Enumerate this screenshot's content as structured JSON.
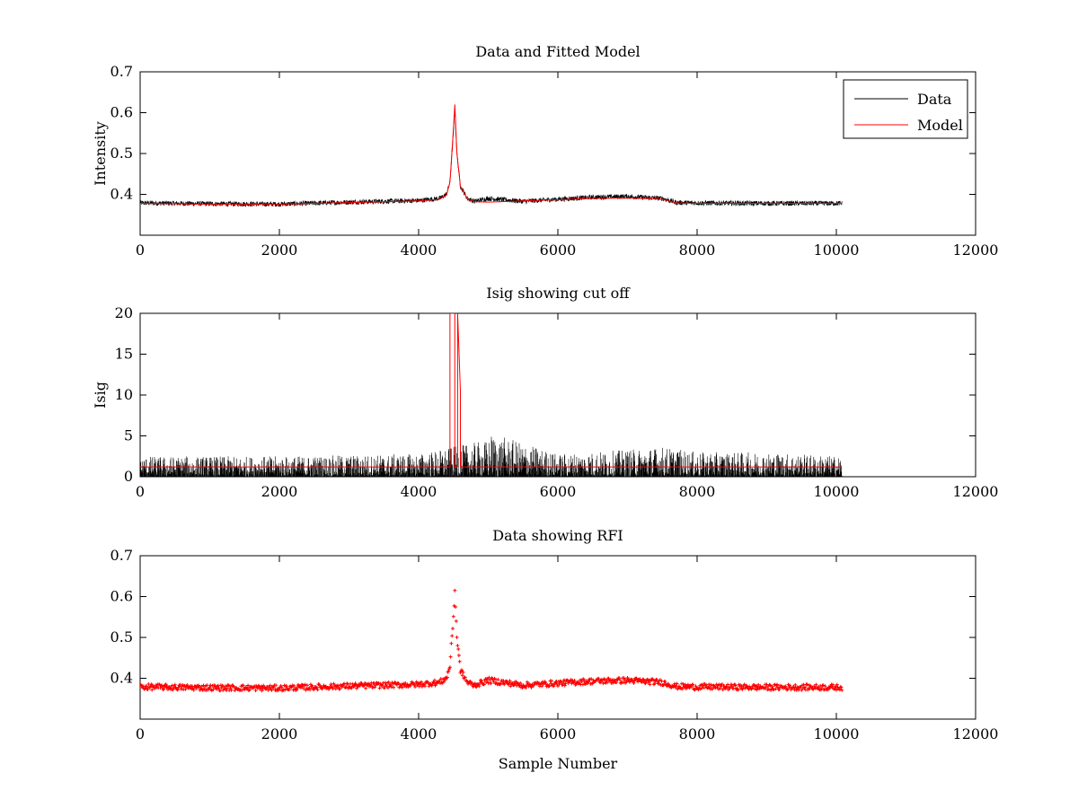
{
  "colors": {
    "data": "#000000",
    "model": "#ff0000",
    "rfi": "#ff0000",
    "cutoff": "#ff0000",
    "axes": "#000000",
    "background": "#ffffff"
  },
  "chart_data": [
    {
      "type": "line",
      "title": "Data and Fitted Model",
      "xlabel": "",
      "ylabel": "Intensity",
      "xlim": [
        0,
        12000
      ],
      "ylim": [
        0.3,
        0.7
      ],
      "xticks": [
        "0",
        "2000",
        "4000",
        "6000",
        "8000",
        "10000",
        "12000"
      ],
      "yticks": [
        "0.4",
        "0.5",
        "0.6",
        "0.7"
      ],
      "grid": false,
      "legend": {
        "placement": "top-right",
        "entries": [
          "Data",
          "Model"
        ]
      },
      "series": [
        {
          "name": "Data",
          "color": "#000000",
          "noise": 0.006,
          "x": [
            0,
            1000,
            2000,
            3000,
            4000,
            4300,
            4400,
            4450,
            4500,
            4520,
            4550,
            4600,
            4700,
            4800,
            5000,
            5500,
            6000,
            6500,
            7000,
            7500,
            7700,
            8000,
            9000,
            10080
          ],
          "y": [
            0.379,
            0.377,
            0.376,
            0.381,
            0.385,
            0.39,
            0.4,
            0.43,
            0.55,
            0.61,
            0.5,
            0.42,
            0.39,
            0.383,
            0.39,
            0.383,
            0.388,
            0.393,
            0.395,
            0.39,
            0.38,
            0.379,
            0.378,
            0.378
          ]
        },
        {
          "name": "Model",
          "color": "#ff0000",
          "noise": 0.0,
          "x": [
            0,
            1000,
            2000,
            3000,
            4000,
            4300,
            4400,
            4450,
            4500,
            4520,
            4550,
            4600,
            4700,
            4800,
            5000,
            5500,
            6000,
            6500,
            7000,
            7500,
            7700,
            8000,
            9000,
            10080
          ],
          "y": [
            0.378,
            0.376,
            0.376,
            0.38,
            0.384,
            0.388,
            0.398,
            0.43,
            0.56,
            0.62,
            0.5,
            0.42,
            0.389,
            0.382,
            0.381,
            0.384,
            0.387,
            0.39,
            0.391,
            0.388,
            0.379,
            0.378,
            0.378,
            0.378
          ]
        }
      ]
    },
    {
      "type": "line",
      "title": "Isig showing cut off",
      "xlabel": "",
      "ylabel": "Isig",
      "xlim": [
        0,
        12000
      ],
      "ylim": [
        0,
        20
      ],
      "xticks": [
        "0",
        "2000",
        "4000",
        "6000",
        "8000",
        "10000",
        "12000"
      ],
      "yticks": [
        "0",
        "5",
        "10",
        "15",
        "20"
      ],
      "grid": false,
      "series": [
        {
          "name": "",
          "kind": "spikes",
          "color": "#000000",
          "x_range": [
            0,
            10080
          ],
          "envelope_x": [
            0,
            2000,
            4000,
            5000,
            5050,
            6000,
            7000,
            7500,
            8000,
            9000,
            10080
          ],
          "envelope_y": [
            2.5,
            2.5,
            2.8,
            4.5,
            5.3,
            2.8,
            3.3,
            3.7,
            3.0,
            3.0,
            2.5
          ]
        },
        {
          "name": "",
          "kind": "cutoff",
          "color": "#ff0000",
          "x": [
            0,
            4450,
            4450,
            4520,
            4520,
            4560,
            4560,
            4600,
            4600,
            10080
          ],
          "y": [
            1.2,
            1.2,
            20,
            20,
            1.2,
            1.2,
            20,
            10.5,
            1.2,
            1.2
          ]
        }
      ]
    },
    {
      "type": "scatter",
      "title": "Data showing RFI",
      "xlabel": "Sample Number",
      "ylabel": "",
      "xlim": [
        0,
        12000
      ],
      "ylim": [
        0.3,
        0.7
      ],
      "xticks": [
        "0",
        "2000",
        "4000",
        "6000",
        "8000",
        "10000",
        "12000"
      ],
      "yticks": [
        "0.4",
        "0.5",
        "0.6",
        "0.7"
      ],
      "grid": false,
      "series": [
        {
          "name": "",
          "color": "#ff0000",
          "noise": 0.007,
          "x": [
            0,
            1000,
            2000,
            3000,
            4000,
            4300,
            4400,
            4450,
            4500,
            4520,
            4550,
            4600,
            4700,
            4800,
            5000,
            5500,
            6000,
            6500,
            7000,
            7500,
            7700,
            8000,
            9000,
            10080
          ],
          "y": [
            0.379,
            0.377,
            0.376,
            0.381,
            0.385,
            0.39,
            0.4,
            0.43,
            0.55,
            0.615,
            0.5,
            0.42,
            0.39,
            0.383,
            0.395,
            0.383,
            0.388,
            0.393,
            0.395,
            0.39,
            0.38,
            0.379,
            0.378,
            0.378
          ]
        }
      ]
    }
  ]
}
